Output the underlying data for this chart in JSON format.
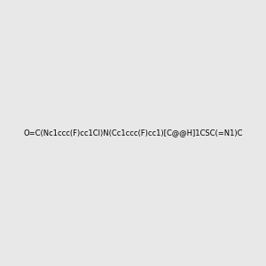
{
  "smiles": "O=C(Nc1ccc(F)cc1Cl)N(Cc1ccc(F)cc1)[C@@H]1CSC(=N1)C",
  "title": "",
  "background_color": "#e8e8e8",
  "atom_colors": {
    "F": "#ff69b4",
    "Cl": "#00cc00",
    "N": "#0000ff",
    "O": "#ff0000",
    "S": "#ccaa00",
    "C": "#000000",
    "H": "#000000"
  },
  "figsize": [
    3.0,
    3.0
  ],
  "dpi": 100
}
